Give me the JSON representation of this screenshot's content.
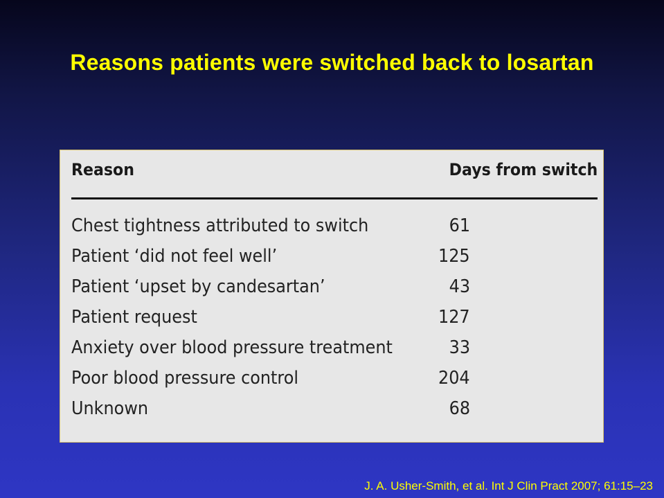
{
  "slide": {
    "title": "Reasons patients were switched back to losartan",
    "citation": "J. A. Usher-Smith, et al. Int J Clin Pract 2007; 61:15–23"
  },
  "table": {
    "headers": {
      "reason": "Reason",
      "days": "Days from switch"
    },
    "rows": [
      {
        "reason": "Chest tightness attributed to switch",
        "days": "61"
      },
      {
        "reason": "Patient ‘did not feel well’",
        "days": "125"
      },
      {
        "reason": "Patient ‘upset by candesartan’",
        "days": "43"
      },
      {
        "reason": "Patient request",
        "days": "127"
      },
      {
        "reason": "Anxiety over blood pressure treatment",
        "days": "33"
      },
      {
        "reason": "Poor blood pressure control",
        "days": "204"
      },
      {
        "reason": "Unknown",
        "days": "68"
      }
    ]
  },
  "colors": {
    "title": "#ffff00",
    "citation": "#ffff00",
    "panel_background": "#e7e7e7",
    "background_top": "#06061c",
    "background_bottom": "#2e36c4"
  }
}
